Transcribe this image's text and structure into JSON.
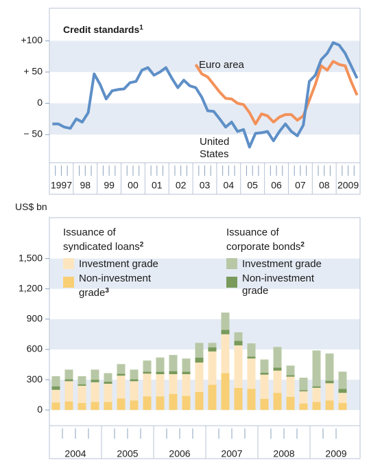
{
  "chart_data": [
    {
      "type": "line",
      "title": "Credit standards",
      "title_note": "1",
      "categories": [
        "1997",
        null,
        null,
        null,
        "98",
        null,
        null,
        null,
        "99",
        null,
        null,
        null,
        "00",
        null,
        null,
        null,
        "01",
        null,
        null,
        null,
        "02",
        null,
        null,
        null,
        "03",
        null,
        null,
        null,
        "04",
        null,
        null,
        null,
        "05",
        null,
        null,
        null,
        "06",
        null,
        null,
        null,
        "07",
        null,
        null,
        null,
        "08",
        null,
        null,
        null,
        "2009",
        null,
        null,
        null
      ],
      "series": [
        {
          "name": "Euro area",
          "color": "#f39159",
          "values": [
            null,
            null,
            null,
            null,
            null,
            null,
            null,
            null,
            null,
            null,
            null,
            null,
            null,
            null,
            null,
            null,
            null,
            null,
            null,
            null,
            null,
            null,
            null,
            null,
            62,
            47,
            42,
            30,
            18,
            8,
            7,
            0,
            -2,
            -15,
            -33,
            -17,
            -20,
            -30,
            -22,
            -18,
            -18,
            -27,
            -20,
            5,
            30,
            60,
            53,
            67,
            62,
            60,
            35,
            13
          ]
        },
        {
          "name": "United States",
          "color": "#5e8fc7",
          "values": [
            -33,
            -33,
            -38,
            -40,
            -25,
            -30,
            -15,
            47,
            30,
            7,
            20,
            22,
            23,
            33,
            35,
            53,
            57,
            45,
            50,
            57,
            40,
            25,
            37,
            28,
            25,
            10,
            -12,
            -13,
            -25,
            -38,
            -30,
            -45,
            -42,
            -70,
            -48,
            -47,
            -45,
            -60,
            -45,
            -33,
            -45,
            -52,
            -35,
            35,
            45,
            70,
            80,
            97,
            93,
            80,
            60,
            40
          ]
        }
      ],
      "ylim": [
        -95,
        152
      ],
      "yticks": [
        {
          "value": -50,
          "label": "− 50"
        },
        0,
        {
          "value": 50,
          "label": "+ 50"
        },
        {
          "value": 100,
          "label": "+100"
        }
      ]
    },
    {
      "type": "stacked_bar",
      "y_label": "US$ bn",
      "categories": [
        "2004",
        null,
        null,
        null,
        "2005",
        null,
        null,
        null,
        "2006",
        null,
        null,
        null,
        "2007",
        null,
        null,
        null,
        "2008",
        null,
        null,
        null,
        "2009",
        null,
        null
      ],
      "legend_groups": [
        {
          "title": "Issuance of syndicated loans",
          "note": "2"
        },
        {
          "title": "Issuance of corporate bonds",
          "note": "2"
        }
      ],
      "series": [
        {
          "name": "Investment grade",
          "color": "#fde6bf",
          "values": [
            125,
            200,
            170,
            195,
            180,
            225,
            190,
            225,
            220,
            195,
            215,
            290,
            330,
            385,
            420,
            300,
            240,
            220,
            200,
            120,
            140,
            170,
            100
          ]
        },
        {
          "name": "Non-investment grade",
          "note": "3",
          "color": "#f8cf74",
          "values": [
            75,
            85,
            70,
            80,
            80,
            115,
            95,
            135,
            135,
            160,
            140,
            180,
            250,
            365,
            220,
            210,
            110,
            170,
            130,
            65,
            80,
            95,
            70
          ]
        },
        {
          "name": "Investment grade",
          "color": "#b8c8a6",
          "values": [
            100,
            95,
            80,
            100,
            85,
            95,
            95,
            110,
            140,
            160,
            130,
            145,
            45,
            170,
            85,
            130,
            130,
            205,
            95,
            125,
            355,
            270,
            170
          ]
        },
        {
          "name": "Non-investment grade",
          "color": "#799a5b",
          "values": [
            35,
            20,
            15,
            25,
            20,
            20,
            20,
            20,
            25,
            30,
            25,
            50,
            40,
            45,
            45,
            20,
            20,
            30,
            15,
            10,
            15,
            25,
            40
          ]
        }
      ],
      "ylim": [
        -155,
        1905
      ],
      "yticks": [
        0,
        300,
        600,
        900,
        {
          "value": 1200,
          "label": "1,200"
        },
        {
          "value": 1500,
          "label": "1,500"
        }
      ]
    }
  ]
}
